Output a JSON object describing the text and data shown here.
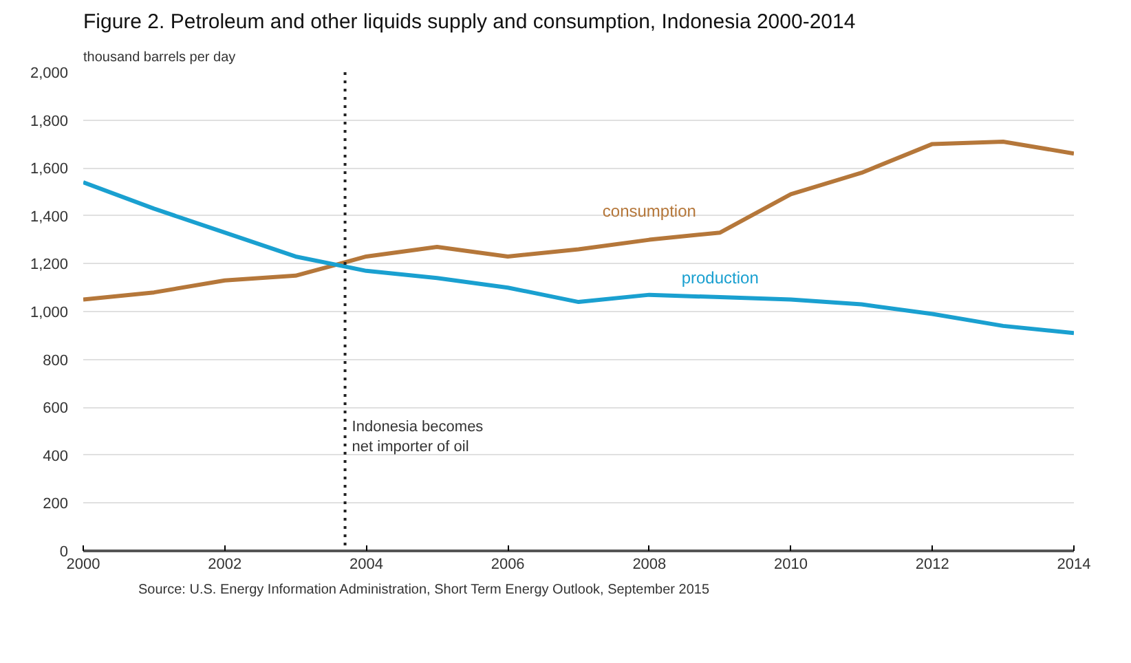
{
  "chart_data": {
    "type": "line",
    "title": "Figure 2. Petroleum and other liquids supply and consumption, Indonesia 2000-2014",
    "subtitle": "thousand barrels per day",
    "x": [
      2000,
      2001,
      2002,
      2003,
      2004,
      2005,
      2006,
      2007,
      2008,
      2009,
      2010,
      2011,
      2012,
      2013,
      2014
    ],
    "series": [
      {
        "name": "consumption",
        "color": "#b5773a",
        "values": [
          1050,
          1080,
          1130,
          1150,
          1230,
          1270,
          1230,
          1260,
          1300,
          1330,
          1490,
          1580,
          1700,
          1710,
          1660
        ]
      },
      {
        "name": "production",
        "color": "#1aa0d0",
        "values": [
          1540,
          1430,
          1330,
          1230,
          1170,
          1140,
          1100,
          1040,
          1070,
          1060,
          1050,
          1030,
          990,
          940,
          910
        ]
      }
    ],
    "xlim": [
      2000,
      2014
    ],
    "xticks": [
      2000,
      2002,
      2004,
      2006,
      2008,
      2010,
      2012,
      2014
    ],
    "ylim": [
      0,
      2000
    ],
    "yticks": [
      0,
      200,
      400,
      600,
      800,
      {
        "value": 1000,
        "label": "1,000"
      },
      {
        "value": 1200,
        "label": "1,200"
      },
      {
        "value": 1400,
        "label": "1,400"
      },
      {
        "value": 1600,
        "label": "1,600"
      },
      {
        "value": 1800,
        "label": "1,800"
      },
      {
        "value": 2000,
        "label": "2,000"
      }
    ],
    "ref_lines": [
      {
        "axis": "x",
        "value": 2003.7,
        "label": "Indonesia becomes\nnet importer of oil",
        "color": "#222222",
        "line_style": "dotted"
      }
    ],
    "annotations": [
      "Source: U.S. Energy Information Administration, Short Term Energy Outlook, September 2015"
    ],
    "grid": "y",
    "legend": false
  }
}
